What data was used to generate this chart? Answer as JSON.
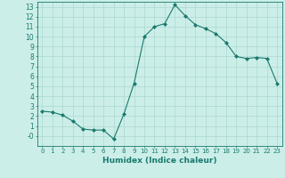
{
  "x": [
    0,
    1,
    2,
    3,
    4,
    5,
    6,
    7,
    8,
    9,
    10,
    11,
    12,
    13,
    14,
    15,
    16,
    17,
    18,
    19,
    20,
    21,
    22,
    23
  ],
  "y": [
    2.5,
    2.4,
    2.1,
    1.5,
    0.7,
    0.6,
    0.6,
    -0.3,
    2.2,
    5.3,
    10.0,
    11.0,
    11.3,
    13.2,
    12.1,
    11.2,
    10.8,
    10.3,
    9.4,
    8.0,
    7.8,
    7.9,
    7.8,
    5.3
  ],
  "line_color": "#1a7a6e",
  "marker": "D",
  "marker_size": 2.0,
  "bg_color": "#cceee8",
  "grid_color": "#aad8d0",
  "xlabel": "Humidex (Indice chaleur)",
  "xlim": [
    -0.5,
    23.5
  ],
  "ylim": [
    -1.0,
    13.5
  ],
  "yticks": [
    0,
    1,
    2,
    3,
    4,
    5,
    6,
    7,
    8,
    9,
    10,
    11,
    12,
    13
  ],
  "ytick_labels": [
    "-0",
    "1",
    "2",
    "3",
    "4",
    "5",
    "6",
    "7",
    "8",
    "9",
    "10",
    "11",
    "12",
    "13"
  ],
  "xticks": [
    0,
    1,
    2,
    3,
    4,
    5,
    6,
    7,
    8,
    9,
    10,
    11,
    12,
    13,
    14,
    15,
    16,
    17,
    18,
    19,
    20,
    21,
    22,
    23
  ],
  "xlabel_fontsize": 6.5,
  "ytick_fontsize": 5.5,
  "xtick_fontsize": 5.0,
  "tick_color": "#1a7a6e",
  "spine_color": "#1a7a6e",
  "linewidth": 0.8
}
